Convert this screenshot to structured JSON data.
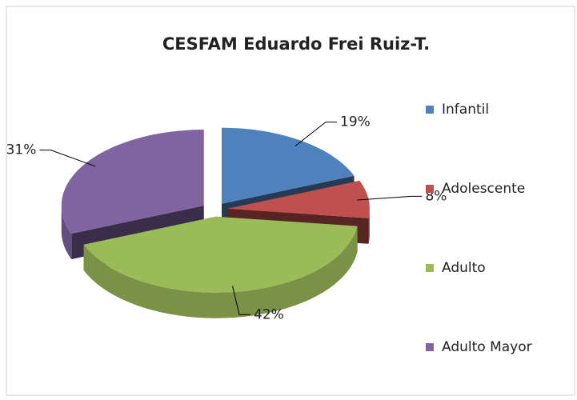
{
  "chart_data": {
    "type": "pie",
    "title": "CESFAM Eduardo Frei Ruiz-T.",
    "categories": [
      "Infantil",
      "Adolescente",
      "Adulto",
      "Adulto Mayor"
    ],
    "values": [
      19,
      8,
      42,
      31
    ],
    "value_labels": [
      "19%",
      "8%",
      "42%",
      "31%"
    ],
    "colors": [
      "#4f81bd",
      "#c0504d",
      "#9bbb59",
      "#8064a2"
    ],
    "legend": "right"
  }
}
